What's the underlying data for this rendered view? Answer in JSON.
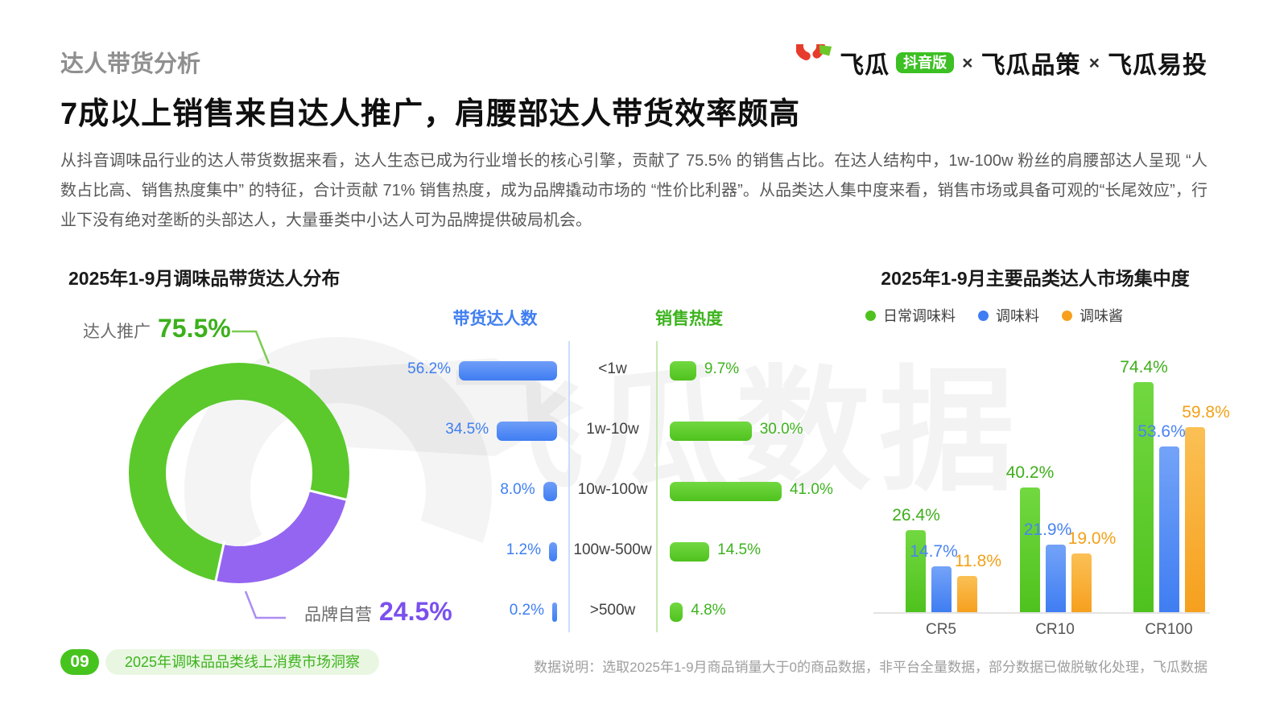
{
  "page": {
    "section_label": "达人带货分析",
    "title": "7成以上销售来自达人推广，肩腰部达人带货效率颇高",
    "paragraph": "从抖音调味品行业的达人带货数据来看，达人生态已成为行业增长的核心引擎，贡献了 75.5% 的销售占比。在达人结构中，1w-100w 粉丝的肩腰部达人呈现 “人数占比高、销售热度集中” 的特征，合计贡献 71% 销售热度，成为品牌撬动市场的 “性价比利器”。从品类达人集中度来看，销售市场或具备可观的“长尾效应”，行业下没有绝对垄断的头部达人，大量垂类中小达人可为品牌提供破局机会。"
  },
  "logo": {
    "brand": "飞瓜",
    "edition": "抖音版",
    "separator": "×",
    "partner1": "飞瓜品策",
    "partner2": "飞瓜易投",
    "brand_red": "#e73b2c",
    "brand_green": "#3cc023"
  },
  "watermark": {
    "text": "飞瓜数据"
  },
  "chart_data": [
    {
      "type": "pie",
      "title": "2025年1-9月调味品带货达人分布",
      "donut": true,
      "slices": [
        {
          "label": "达人推广",
          "value": 75.5,
          "color": "#5bc92c",
          "label_color": "#3cb01c"
        },
        {
          "label": "品牌自营",
          "value": 24.5,
          "color": "#9465f1",
          "label_color": "#7b50ed"
        }
      ]
    },
    {
      "type": "bar",
      "subtype": "butterfly-horizontal",
      "left_title": "带货达人数",
      "right_title": "销售热度",
      "categories": [
        "<1w",
        "1w-10w",
        "10w-100w",
        "100w-500w",
        ">500w"
      ],
      "series": [
        {
          "name": "带货达人数",
          "values": [
            56.2,
            34.5,
            8.0,
            1.2,
            0.2
          ],
          "color": "#3f7df2",
          "color_light": "#6f9ef8",
          "text_color": "#3f7ef2"
        },
        {
          "name": "销售热度",
          "values": [
            9.7,
            30.0,
            41.0,
            14.5,
            4.8
          ],
          "color": "#4fc21e",
          "color_light": "#72d841",
          "text_color": "#3db31e"
        }
      ]
    },
    {
      "type": "bar",
      "subtype": "grouped-vertical",
      "title": "2025年1-9月主要品类达人市场集中度",
      "categories": [
        "CR5",
        "CR10",
        "CR100"
      ],
      "series": [
        {
          "name": "日常调味料",
          "values": [
            26.4,
            40.2,
            74.4
          ],
          "color": "#4fc21e",
          "color_light": "#72d841",
          "text_color": "#3fae1a"
        },
        {
          "name": "调味料",
          "values": [
            14.7,
            21.9,
            53.6
          ],
          "color": "#3f7df2",
          "color_light": "#74a3f8",
          "text_color": "#4a84f2"
        },
        {
          "name": "调味酱",
          "values": [
            11.8,
            19.0,
            59.8
          ],
          "color": "#f6a01e",
          "color_light": "#fbc055",
          "text_color": "#f2a119"
        }
      ]
    }
  ],
  "footer": {
    "page_no": "09",
    "report_label": "2025年调味品品类线上消费市场洞察",
    "data_note": "数据说明：选取2025年1-9月商品销量大于0的商品数据，非平台全量数据，部分数据已做脱敏化处理，飞瓜数据"
  }
}
